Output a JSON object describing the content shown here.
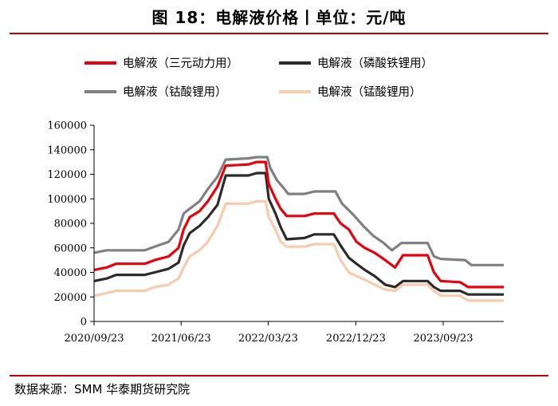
{
  "header": {
    "title": "图 18：电解液价格丨单位：元/吨"
  },
  "footer": {
    "source": "数据来源：SMM 华泰期货研究院"
  },
  "chart_data": {
    "type": "line",
    "title": "图 18：电解液价格丨单位：元/吨",
    "xlabel": "",
    "ylabel": "",
    "ylim": [
      0,
      160000
    ],
    "yticks": [
      "0",
      "20000",
      "40000",
      "60000",
      "80000",
      "100000",
      "120000",
      "140000",
      "160000"
    ],
    "xtick_labels": [
      "2020/09/23",
      "2021/06/23",
      "2022/03/23",
      "2022/12/23",
      "2023/09/23"
    ],
    "xrange": [
      "2020-09-23",
      "2024-03-31"
    ],
    "grid": false,
    "legend_position": "top",
    "series": [
      {
        "name": "电解液（三元动力用）",
        "color": "#e8000b",
        "points": [
          [
            "2020-09-23",
            42000
          ],
          [
            "2020-11-01",
            44000
          ],
          [
            "2020-12-01",
            47000
          ],
          [
            "2021-03-01",
            47000
          ],
          [
            "2021-04-01",
            50000
          ],
          [
            "2021-05-15",
            53000
          ],
          [
            "2021-06-15",
            60000
          ],
          [
            "2021-07-01",
            75000
          ],
          [
            "2021-07-20",
            85000
          ],
          [
            "2021-08-20",
            90000
          ],
          [
            "2021-09-15",
            98000
          ],
          [
            "2021-10-15",
            110000
          ],
          [
            "2021-11-10",
            127000
          ],
          [
            "2022-01-20",
            128000
          ],
          [
            "2022-02-15",
            130000
          ],
          [
            "2022-03-15",
            130000
          ],
          [
            "2022-03-25",
            112000
          ],
          [
            "2022-04-15",
            100000
          ],
          [
            "2022-05-01",
            92000
          ],
          [
            "2022-05-20",
            86000
          ],
          [
            "2022-07-15",
            86000
          ],
          [
            "2022-08-15",
            88000
          ],
          [
            "2022-10-15",
            88000
          ],
          [
            "2022-11-05",
            80000
          ],
          [
            "2022-12-01",
            75000
          ],
          [
            "2022-12-25",
            65000
          ],
          [
            "2023-01-20",
            60000
          ],
          [
            "2023-02-20",
            56000
          ],
          [
            "2023-03-25",
            50000
          ],
          [
            "2023-04-25",
            44000
          ],
          [
            "2023-05-20",
            54000
          ],
          [
            "2023-08-05",
            54000
          ],
          [
            "2023-08-25",
            40000
          ],
          [
            "2023-09-15",
            33000
          ],
          [
            "2023-11-15",
            32000
          ],
          [
            "2023-12-10",
            28000
          ],
          [
            "2024-03-31",
            28000
          ]
        ]
      },
      {
        "name": "电解液（磷酸铁锂用）",
        "color": "#2b2b2b",
        "points": [
          [
            "2020-09-23",
            33000
          ],
          [
            "2020-11-01",
            35000
          ],
          [
            "2020-12-01",
            38000
          ],
          [
            "2021-03-01",
            38000
          ],
          [
            "2021-04-01",
            40000
          ],
          [
            "2021-05-15",
            43000
          ],
          [
            "2021-06-15",
            48000
          ],
          [
            "2021-07-01",
            62000
          ],
          [
            "2021-07-20",
            72000
          ],
          [
            "2021-08-20",
            78000
          ],
          [
            "2021-09-15",
            85000
          ],
          [
            "2021-10-15",
            95000
          ],
          [
            "2021-11-10",
            119000
          ],
          [
            "2022-01-20",
            119000
          ],
          [
            "2022-02-15",
            121000
          ],
          [
            "2022-03-15",
            121000
          ],
          [
            "2022-03-25",
            100000
          ],
          [
            "2022-04-15",
            88000
          ],
          [
            "2022-05-01",
            77000
          ],
          [
            "2022-05-20",
            67000
          ],
          [
            "2022-07-15",
            68000
          ],
          [
            "2022-08-15",
            71000
          ],
          [
            "2022-10-15",
            71000
          ],
          [
            "2022-11-05",
            62000
          ],
          [
            "2022-12-01",
            52000
          ],
          [
            "2022-12-25",
            47000
          ],
          [
            "2023-01-20",
            42000
          ],
          [
            "2023-02-20",
            37000
          ],
          [
            "2023-03-25",
            30000
          ],
          [
            "2023-04-25",
            28000
          ],
          [
            "2023-05-20",
            33000
          ],
          [
            "2023-08-05",
            33000
          ],
          [
            "2023-08-25",
            28000
          ],
          [
            "2023-09-15",
            25000
          ],
          [
            "2023-11-15",
            25000
          ],
          [
            "2023-12-10",
            22000
          ],
          [
            "2024-03-31",
            22000
          ]
        ]
      },
      {
        "name": "电解液（钴酸锂用）",
        "color": "#808080",
        "points": [
          [
            "2020-09-23",
            56000
          ],
          [
            "2020-11-01",
            58000
          ],
          [
            "2021-03-01",
            58000
          ],
          [
            "2021-04-01",
            61000
          ],
          [
            "2021-05-15",
            65000
          ],
          [
            "2021-06-15",
            75000
          ],
          [
            "2021-07-01",
            88000
          ],
          [
            "2021-07-20",
            92000
          ],
          [
            "2021-08-20",
            98000
          ],
          [
            "2021-09-15",
            108000
          ],
          [
            "2021-10-15",
            118000
          ],
          [
            "2021-11-10",
            132000
          ],
          [
            "2022-01-20",
            133000
          ],
          [
            "2022-02-15",
            134000
          ],
          [
            "2022-03-20",
            134000
          ],
          [
            "2022-03-30",
            125000
          ],
          [
            "2022-04-20",
            115000
          ],
          [
            "2022-05-10",
            109000
          ],
          [
            "2022-05-25",
            104000
          ],
          [
            "2022-07-15",
            104000
          ],
          [
            "2022-08-15",
            106000
          ],
          [
            "2022-10-20",
            106000
          ],
          [
            "2022-11-10",
            96000
          ],
          [
            "2022-12-15",
            87000
          ],
          [
            "2023-01-15",
            78000
          ],
          [
            "2023-02-15",
            70000
          ],
          [
            "2023-03-20",
            64000
          ],
          [
            "2023-04-15",
            58000
          ],
          [
            "2023-05-15",
            64000
          ],
          [
            "2023-08-05",
            64000
          ],
          [
            "2023-08-25",
            53000
          ],
          [
            "2023-09-15",
            51000
          ],
          [
            "2023-12-01",
            50000
          ],
          [
            "2023-12-20",
            46000
          ],
          [
            "2024-03-31",
            46000
          ]
        ]
      },
      {
        "name": "电解液（锰酸锂用）",
        "color": "#f8cbad",
        "points": [
          [
            "2020-09-23",
            21000
          ],
          [
            "2020-11-01",
            23000
          ],
          [
            "2020-12-01",
            25000
          ],
          [
            "2021-03-01",
            25000
          ],
          [
            "2021-04-01",
            28000
          ],
          [
            "2021-05-15",
            30000
          ],
          [
            "2021-06-15",
            35000
          ],
          [
            "2021-07-01",
            44000
          ],
          [
            "2021-07-20",
            53000
          ],
          [
            "2021-08-20",
            58000
          ],
          [
            "2021-09-15",
            65000
          ],
          [
            "2021-10-15",
            78000
          ],
          [
            "2021-11-10",
            96000
          ],
          [
            "2022-01-20",
            96000
          ],
          [
            "2022-02-15",
            98000
          ],
          [
            "2022-03-15",
            98000
          ],
          [
            "2022-03-25",
            85000
          ],
          [
            "2022-04-15",
            75000
          ],
          [
            "2022-05-01",
            65000
          ],
          [
            "2022-05-20",
            61000
          ],
          [
            "2022-07-15",
            61000
          ],
          [
            "2022-08-15",
            63000
          ],
          [
            "2022-10-15",
            63000
          ],
          [
            "2022-11-05",
            50000
          ],
          [
            "2022-12-01",
            40000
          ],
          [
            "2022-12-25",
            37000
          ],
          [
            "2023-01-20",
            34000
          ],
          [
            "2023-02-20",
            30000
          ],
          [
            "2023-03-25",
            26000
          ],
          [
            "2023-04-25",
            25000
          ],
          [
            "2023-05-20",
            30000
          ],
          [
            "2023-08-05",
            30000
          ],
          [
            "2023-08-25",
            25000
          ],
          [
            "2023-09-15",
            21000
          ],
          [
            "2023-11-15",
            21000
          ],
          [
            "2023-12-10",
            17000
          ],
          [
            "2024-03-31",
            17000
          ]
        ]
      }
    ]
  }
}
